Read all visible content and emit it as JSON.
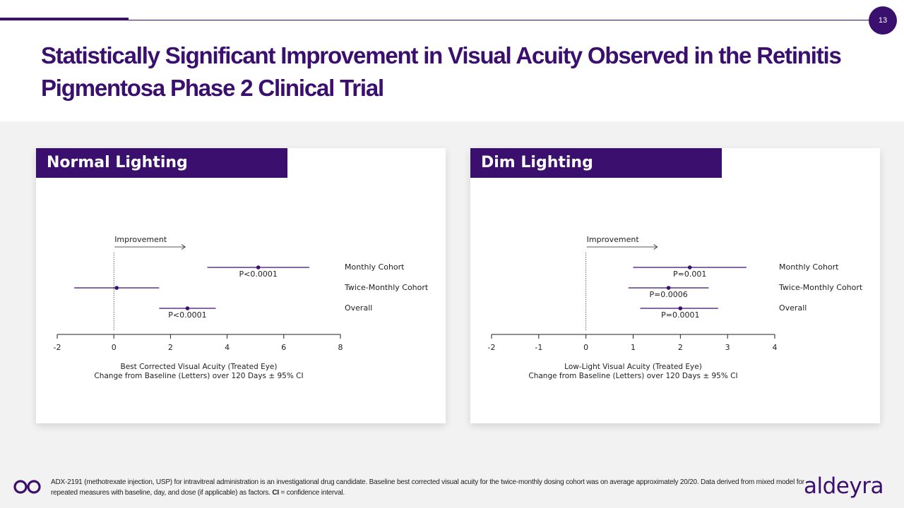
{
  "page": {
    "number": "13",
    "title": "Statistically Significant Improvement in Visual Acuity Observed in the Retinitis Pigmentosa Phase 2 Clinical Trial"
  },
  "colors": {
    "brand": "#3b0f6e",
    "background": "#f2f2f2"
  },
  "chart_data": [
    {
      "type": "forest",
      "title": "Normal Lighting",
      "annotation": "Improvement",
      "xlabel_line1": "Best Corrected Visual Acuity (Treated Eye)",
      "xlabel_line2": "Change from Baseline (Letters) over 120 Days ± 95% CI",
      "xlim": [
        -2,
        8
      ],
      "xticks": [
        -2,
        0,
        2,
        4,
        6,
        8
      ],
      "xtick_labels": [
        "-2",
        "0",
        "2",
        "4",
        "6",
        "8"
      ],
      "rows": [
        {
          "label": "Monthly Cohort",
          "estimate": 5.1,
          "ci_low": 3.3,
          "ci_high": 6.9,
          "p": "P<0.0001"
        },
        {
          "label": "Twice-Monthly Cohort",
          "estimate": 0.1,
          "ci_low": -1.4,
          "ci_high": 1.6,
          "p": ""
        },
        {
          "label": "Overall",
          "estimate": 2.6,
          "ci_low": 1.6,
          "ci_high": 3.6,
          "p": "P<0.0001"
        }
      ]
    },
    {
      "type": "forest",
      "title": "Dim Lighting",
      "annotation": "Improvement",
      "xlabel_line1": "Low-Light Visual Acuity (Treated Eye)",
      "xlabel_line2": "Change from Baseline (Letters) over 120 Days ± 95% CI",
      "xlim": [
        -2,
        4
      ],
      "xticks": [
        -2,
        -1,
        0,
        1,
        2,
        3,
        4
      ],
      "xtick_labels": [
        "-2",
        "-1",
        "0",
        "1",
        "2",
        "3",
        "4"
      ],
      "rows": [
        {
          "label": "Monthly Cohort",
          "estimate": 2.2,
          "ci_low": 1.0,
          "ci_high": 3.4,
          "p": "P=0.001"
        },
        {
          "label": "Twice-Monthly Cohort",
          "estimate": 1.75,
          "ci_low": 0.9,
          "ci_high": 2.6,
          "p": "P=0.0006"
        },
        {
          "label": "Overall",
          "estimate": 2.0,
          "ci_low": 1.15,
          "ci_high": 2.8,
          "p": "P=0.0001"
        }
      ]
    }
  ],
  "footer": {
    "text": "ADX-2191 (methotrexate injection, USP) for intravitreal administration is an investigational drug candidate. Baseline best corrected visual acuity for the twice-monthly dosing cohort was on average approximately 20/20. Data derived from mixed model for repeated measures with baseline, day, and dose (if applicable) as factors.",
    "ci_abbrev": "CI",
    "ci_definition": " = confidence interval.",
    "brand_name": "aldeyra"
  }
}
